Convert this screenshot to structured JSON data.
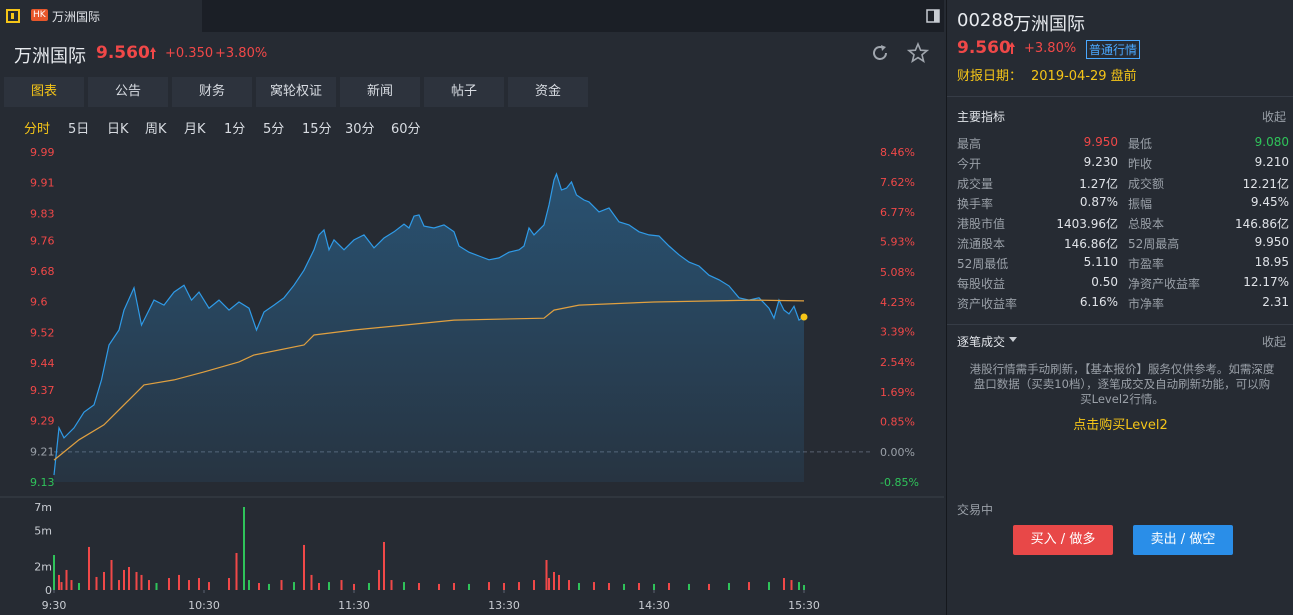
{
  "tab": {
    "badge": "HK",
    "label": "万洲国际"
  },
  "header": {
    "name": "万洲国际",
    "price": "9.560",
    "change": "+0.350",
    "pct": "+3.80%"
  },
  "nav": {
    "items": [
      "图表",
      "公告",
      "财务",
      "窝轮权证",
      "新闻",
      "帖子",
      "资金"
    ],
    "active": 0
  },
  "periods": {
    "items": [
      "分时",
      "5日",
      "日K",
      "周K",
      "月K",
      "1分",
      "5分",
      "15分",
      "30分",
      "60分"
    ],
    "active": 0
  },
  "quote": {
    "code": "00288",
    "name": "万洲国际",
    "price": "9.560",
    "pct": "+3.80%",
    "badge": "普通行情",
    "report_label": "财报日期：",
    "report_date": "2019-04-29 盘前"
  },
  "indicators": {
    "title": "主要指标",
    "collapse": "收起",
    "items": [
      {
        "label": "最高",
        "value": "9.950",
        "color": "#f04848"
      },
      {
        "label": "最低",
        "value": "9.080",
        "color": "#2fc35a"
      },
      {
        "label": "今开",
        "value": "9.230"
      },
      {
        "label": "昨收",
        "value": "9.210"
      },
      {
        "label": "成交量",
        "value": "1.27亿"
      },
      {
        "label": "成交额",
        "value": "12.21亿"
      },
      {
        "label": "换手率",
        "value": "0.87%"
      },
      {
        "label": "振幅",
        "value": "9.45%"
      },
      {
        "label": "港股市值",
        "value": "1403.96亿"
      },
      {
        "label": "总股本",
        "value": "146.86亿"
      },
      {
        "label": "流通股本",
        "value": "146.86亿"
      },
      {
        "label": "52周最高",
        "value": "9.950"
      },
      {
        "label": "52周最低",
        "value": "5.110"
      },
      {
        "label": "市盈率",
        "value": "18.95"
      },
      {
        "label": "每股收益",
        "value": "0.50"
      },
      {
        "label": "净资产收益率",
        "value": "12.17%"
      },
      {
        "label": "资产收益率",
        "value": "6.16%"
      },
      {
        "label": "市净率",
        "value": "2.31"
      }
    ]
  },
  "trades": {
    "title": "逐笔成交",
    "collapse": "收起",
    "notice": "港股行情需手动刷新，【基本报价】服务仅供参考。如需深度盘口数据（买卖10档），逐笔成交及自动刷新功能，可以购买Level2行情。",
    "link": "点击购买Level2"
  },
  "status": "交易中",
  "buttons": {
    "buy": "买入 / 做多",
    "sell": "卖出 / 做空"
  },
  "chart_data": [
    {
      "type": "line",
      "xlim": [
        0,
        300
      ],
      "ylim": [
        9.13,
        9.99
      ],
      "yticks": [
        9.13,
        9.21,
        9.29,
        9.37,
        9.44,
        9.52,
        9.6,
        9.68,
        9.76,
        9.83,
        9.91,
        9.99
      ],
      "y2lim": [
        -0.85,
        8.46
      ],
      "y2ticks": [
        {
          "value": -0.85,
          "label": "-0.85%"
        },
        {
          "value": 0,
          "label": "0.00%"
        },
        {
          "value": 0.85,
          "label": "0.85%"
        },
        {
          "value": 1.69,
          "label": "1.69%"
        },
        {
          "value": 2.54,
          "label": "2.54%"
        },
        {
          "value": 3.39,
          "label": "3.39%"
        },
        {
          "value": 4.23,
          "label": "4.23%"
        },
        {
          "value": 5.08,
          "label": "5.08%"
        },
        {
          "value": 5.93,
          "label": "5.93%"
        },
        {
          "value": 6.77,
          "label": "6.77%"
        },
        {
          "value": 7.62,
          "label": "7.62%"
        },
        {
          "value": 8.46,
          "label": "8.46%"
        }
      ],
      "up_color": "#f04848",
      "down_color": "#2fc35a",
      "flat_color": "#9aa0a8",
      "last_color": "#f5c518",
      "series": [
        {
          "color": "#2f9be8",
          "area": true,
          "x": [
            0,
            2,
            4,
            8,
            12,
            16,
            19,
            22,
            26,
            28,
            32,
            35,
            38,
            40,
            44,
            48,
            52,
            55,
            58,
            62,
            66,
            70,
            74,
            78,
            81,
            84,
            88,
            92,
            96,
            100,
            104,
            106,
            108,
            110,
            112,
            116,
            120,
            124,
            128,
            132,
            136,
            140,
            142,
            144,
            146,
            148,
            152,
            156,
            160,
            162,
            166,
            170,
            174,
            178,
            182,
            186,
            188,
            190,
            192,
            196,
            198,
            200,
            201,
            203,
            205,
            207,
            209,
            212,
            214,
            218,
            222,
            226,
            230,
            234,
            238,
            242,
            246,
            250,
            254,
            258,
            262,
            266,
            270,
            274,
            278,
            282,
            286,
            288,
            290,
            292,
            294,
            296,
            298,
            300
          ],
          "values": [
            9.148,
            9.271,
            9.245,
            9.271,
            9.312,
            9.331,
            9.396,
            9.487,
            9.526,
            9.578,
            9.636,
            9.539,
            9.578,
            9.604,
            9.591,
            9.625,
            9.643,
            9.604,
            9.625,
            9.583,
            9.604,
            9.578,
            9.599,
            9.583,
            9.526,
            9.573,
            9.591,
            9.61,
            9.643,
            9.682,
            9.735,
            9.774,
            9.787,
            9.735,
            9.761,
            9.735,
            9.761,
            9.774,
            9.74,
            9.766,
            9.782,
            9.802,
            9.792,
            9.823,
            9.826,
            9.797,
            9.792,
            9.8,
            9.782,
            9.745,
            9.729,
            9.719,
            9.709,
            9.714,
            9.729,
            9.735,
            9.745,
            9.792,
            9.774,
            9.8,
            9.852,
            9.917,
            9.933,
            9.891,
            9.896,
            9.912,
            9.878,
            9.865,
            9.86,
            9.834,
            9.844,
            9.808,
            9.8,
            9.782,
            9.774,
            9.771,
            9.745,
            9.722,
            9.703,
            9.693,
            9.669,
            9.657,
            9.641,
            9.61,
            9.604,
            9.61,
            9.583,
            9.557,
            9.604,
            9.578,
            9.568,
            9.588,
            9.552,
            9.56
          ]
        },
        {
          "color": "#e0a040",
          "x": [
            0,
            10,
            20,
            30,
            36,
            48,
            60,
            74,
            80,
            100,
            104,
            120,
            140,
            160,
            196,
            200,
            210,
            240,
            280,
            300
          ],
          "values": [
            9.187,
            9.24,
            9.279,
            9.344,
            9.383,
            9.396,
            9.417,
            9.443,
            9.461,
            9.487,
            9.513,
            9.526,
            9.539,
            9.552,
            9.557,
            9.578,
            9.591,
            9.599,
            9.604,
            9.602
          ]
        }
      ]
    },
    {
      "type": "bar",
      "xlim": [
        0,
        300
      ],
      "xticks": [
        {
          "value": 0,
          "label": "9:30"
        },
        {
          "value": 60,
          "label": "10:30"
        },
        {
          "value": 120,
          "label": "11:30"
        },
        {
          "value": 180,
          "label": "13:30"
        },
        {
          "value": 240,
          "label": "14:30"
        },
        {
          "value": 300,
          "label": "15:30"
        }
      ],
      "ylim": [
        0,
        7000000
      ],
      "yticks": [
        0,
        {
          "value": 2000000,
          "label": "2m"
        },
        {
          "value": 5000000,
          "label": "5m"
        },
        {
          "value": 7000000,
          "label": "7m"
        }
      ],
      "x": [
        0,
        2,
        3,
        5,
        7,
        10,
        14,
        17,
        20,
        23,
        26,
        28,
        30,
        33,
        35,
        38,
        41,
        46,
        50,
        54,
        58,
        62,
        70,
        73,
        76,
        78,
        82,
        86,
        91,
        96,
        100,
        103,
        106,
        110,
        115,
        120,
        126,
        130,
        132,
        135,
        140,
        146,
        154,
        160,
        166,
        174,
        180,
        186,
        192,
        197,
        198,
        200,
        202,
        206,
        210,
        216,
        222,
        228,
        234,
        240,
        246,
        254,
        262,
        270,
        278,
        286,
        292,
        295,
        298,
        300
      ],
      "values": [
        2950000,
        1270000,
        670000,
        1690000,
        840000,
        590000,
        3630000,
        1100000,
        1520000,
        2530000,
        840000,
        1690000,
        1940000,
        1520000,
        1270000,
        840000,
        590000,
        1010000,
        1270000,
        840000,
        1010000,
        670000,
        1010000,
        3120000,
        7000000,
        840000,
        590000,
        510000,
        840000,
        670000,
        3800000,
        1270000,
        590000,
        670000,
        840000,
        510000,
        590000,
        1690000,
        4050000,
        840000,
        670000,
        590000,
        510000,
        590000,
        510000,
        670000,
        590000,
        670000,
        840000,
        2530000,
        1010000,
        1520000,
        1270000,
        840000,
        590000,
        670000,
        590000,
        510000,
        590000,
        510000,
        590000,
        510000,
        510000,
        590000,
        670000,
        670000,
        1010000,
        840000,
        670000,
        420000
      ],
      "bar_colors": [
        "#2fc35a",
        "#f04848",
        "#f04848",
        "#f04848",
        "#f04848",
        "#2fc35a",
        "#f04848",
        "#f04848",
        "#f04848",
        "#f04848",
        "#f04848",
        "#f04848",
        "#f04848",
        "#f04848",
        "#f04848",
        "#f04848",
        "#2fc35a",
        "#f04848",
        "#f04848",
        "#f04848",
        "#f04848",
        "#f04848",
        "#f04848",
        "#f04848",
        "#2fc35a",
        "#2fc35a",
        "#f04848",
        "#2fc35a",
        "#f04848",
        "#2fc35a",
        "#f04848",
        "#f04848",
        "#f04848",
        "#2fc35a",
        "#f04848",
        "#f04848",
        "#2fc35a",
        "#f04848",
        "#f04848",
        "#f04848",
        "#2fc35a",
        "#f04848",
        "#f04848",
        "#f04848",
        "#2fc35a",
        "#f04848",
        "#f04848",
        "#f04848",
        "#f04848",
        "#f04848",
        "#f04848",
        "#f04848",
        "#f04848",
        "#f04848",
        "#2fc35a",
        "#f04848",
        "#f04848",
        "#2fc35a",
        "#f04848",
        "#2fc35a",
        "#f04848",
        "#2fc35a",
        "#f04848",
        "#2fc35a",
        "#f04848",
        "#2fc35a",
        "#f04848",
        "#f04848",
        "#2fc35a",
        "#2fc35a"
      ]
    }
  ]
}
